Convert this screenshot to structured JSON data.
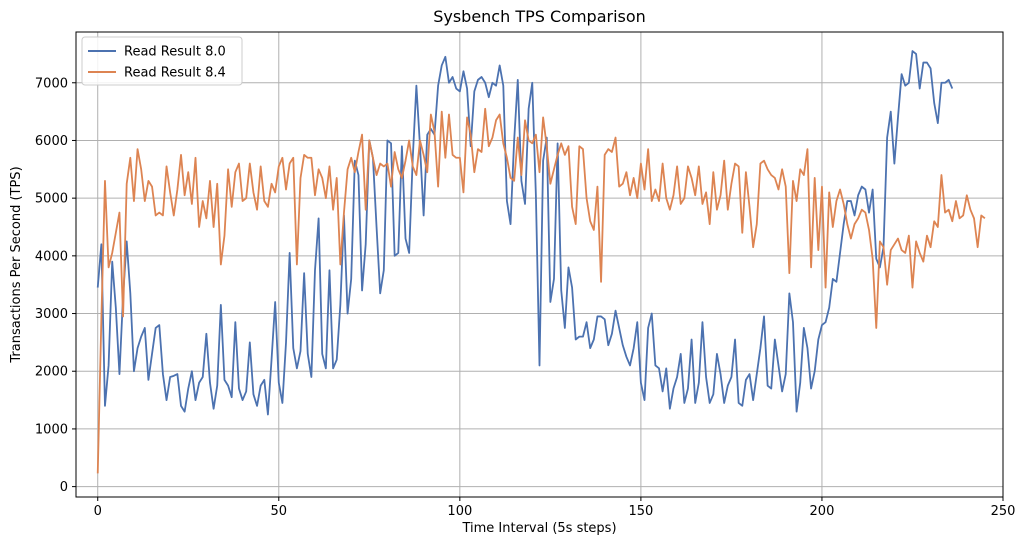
{
  "chart_data": {
    "type": "line",
    "title": "Sysbench TPS Comparison",
    "xlabel": "Time Interval (5s steps)",
    "ylabel": "Transactions Per Second (TPS)",
    "xlim": [
      -6,
      250
    ],
    "ylim": [
      -180,
      7880
    ],
    "xticks": [
      0,
      50,
      100,
      150,
      200,
      250
    ],
    "yticks": [
      0,
      1000,
      2000,
      3000,
      4000,
      5000,
      6000,
      7000
    ],
    "grid": true,
    "legend_position": "top-left",
    "series": [
      {
        "name": "Read Result 8.0",
        "color": "#4c72b0",
        "values": [
          3450,
          4200,
          1400,
          2100,
          3900,
          3100,
          1950,
          3300,
          4250,
          3350,
          2000,
          2400,
          2600,
          2750,
          1850,
          2300,
          2750,
          2800,
          1950,
          1500,
          1900,
          1920,
          1950,
          1400,
          1300,
          1700,
          2000,
          1500,
          1800,
          1900,
          2650,
          1800,
          1350,
          1750,
          3150,
          1850,
          1750,
          1550,
          2850,
          1700,
          1500,
          1650,
          2500,
          1600,
          1400,
          1750,
          1850,
          1250,
          2200,
          3200,
          1800,
          1450,
          2500,
          4050,
          2400,
          2050,
          2350,
          3700,
          2300,
          1900,
          3750,
          4650,
          2300,
          2050,
          3750,
          2050,
          2200,
          3150,
          4700,
          3000,
          3600,
          5650,
          5400,
          3400,
          4200,
          6000,
          5700,
          4500,
          3350,
          3750,
          6000,
          5950,
          4000,
          4050,
          5900,
          4300,
          4050,
          5700,
          6950,
          5900,
          4700,
          6100,
          6200,
          6100,
          6950,
          7300,
          7450,
          7000,
          7100,
          6900,
          6850,
          7200,
          6900,
          5900,
          6850,
          7050,
          7100,
          7000,
          6750,
          7000,
          6950,
          7300,
          6950,
          4950,
          4550,
          6000,
          7050,
          5300,
          4900,
          6550,
          7000,
          5050,
          2100,
          5650,
          6050,
          3200,
          3600,
          5950,
          3400,
          2750,
          3800,
          3450,
          2550,
          2600,
          2600,
          2850,
          2400,
          2550,
          2950,
          2950,
          2900,
          2450,
          2650,
          3050,
          2750,
          2450,
          2250,
          2100,
          2400,
          2850,
          1800,
          1500,
          2750,
          3000,
          2100,
          2050,
          1650,
          2050,
          1350,
          1700,
          1900,
          2300,
          1450,
          1700,
          2550,
          1450,
          1800,
          2850,
          1900,
          1450,
          1600,
          2300,
          1950,
          1450,
          1750,
          1900,
          2550,
          1450,
          1400,
          1850,
          1950,
          1500,
          1950,
          2400,
          2950,
          1750,
          1700,
          2550,
          2100,
          1650,
          1950,
          3350,
          2850,
          1300,
          1800,
          2750,
          2400,
          1700,
          2000,
          2550,
          2800,
          2850,
          3100,
          3600,
          3550,
          4050,
          4550,
          4950,
          4950,
          4700,
          5050,
          5200,
          5150,
          4750,
          5150,
          3950,
          3800,
          4150,
          6050,
          6500,
          5600,
          6400,
          7150,
          6950,
          7000,
          7550,
          7500,
          6900,
          7350,
          7350,
          7250,
          6650,
          6300,
          7000,
          7000,
          7050,
          6900
        ]
      },
      {
        "name": "Read Result 8.4",
        "color": "#dd8452",
        "values": [
          230,
          2900,
          5300,
          3800,
          4050,
          4400,
          4750,
          2950,
          5250,
          5700,
          4950,
          5850,
          5500,
          4950,
          5300,
          5200,
          4700,
          4750,
          4700,
          5550,
          5100,
          4700,
          5150,
          5750,
          5050,
          5450,
          4900,
          5700,
          4500,
          4950,
          4650,
          5300,
          4500,
          5250,
          3850,
          4350,
          5500,
          4850,
          5450,
          5600,
          4950,
          5000,
          5600,
          5100,
          4800,
          5550,
          4950,
          4850,
          5250,
          5100,
          5550,
          5700,
          5150,
          5600,
          5700,
          3850,
          5350,
          5750,
          5700,
          5700,
          5050,
          5500,
          5350,
          5000,
          5550,
          4800,
          5350,
          3850,
          4750,
          5500,
          5700,
          5450,
          5800,
          6100,
          4800,
          6000,
          5700,
          5400,
          5600,
          5550,
          5600,
          5200,
          5800,
          5500,
          5350,
          5650,
          6000,
          5550,
          5400,
          6000,
          5750,
          5450,
          6450,
          6150,
          5200,
          6500,
          5700,
          6450,
          5750,
          5700,
          5700,
          5100,
          6400,
          6100,
          5450,
          5850,
          5800,
          6550,
          5900,
          6050,
          6350,
          6450,
          5950,
          5700,
          5350,
          5300,
          6050,
          5400,
          6350,
          6000,
          5950,
          6100,
          5450,
          6400,
          5900,
          5250,
          5500,
          5750,
          5950,
          5750,
          5900,
          4850,
          4550,
          5900,
          5850,
          5000,
          4600,
          4450,
          5200,
          3550,
          5750,
          5850,
          5800,
          6050,
          5200,
          5250,
          5450,
          5050,
          5350,
          5000,
          5600,
          5150,
          5850,
          4950,
          5150,
          4950,
          5600,
          5000,
          4800,
          5050,
          5550,
          4900,
          5000,
          5550,
          5350,
          5050,
          5550,
          4900,
          5100,
          4550,
          5450,
          4800,
          5050,
          5650,
          4800,
          5250,
          5600,
          5550,
          4400,
          5450,
          4850,
          4150,
          4550,
          5600,
          5650,
          5500,
          5400,
          5350,
          5150,
          5500,
          5200,
          3700,
          5300,
          4950,
          5500,
          5400,
          5850,
          3800,
          5350,
          4100,
          5200,
          3450,
          5100,
          4500,
          4950,
          5150,
          4900,
          4550,
          4300,
          4550,
          4650,
          4800,
          4750,
          4450,
          3950,
          2750,
          4250,
          4150,
          3500,
          4100,
          4200,
          4300,
          4100,
          4050,
          4350,
          3450,
          4250,
          4050,
          3900,
          4350,
          4150,
          4600,
          4500,
          5400,
          4750,
          4800,
          4600,
          4950,
          4650,
          4700,
          5050,
          4800,
          4650,
          4150,
          4700,
          4650
        ]
      }
    ]
  }
}
